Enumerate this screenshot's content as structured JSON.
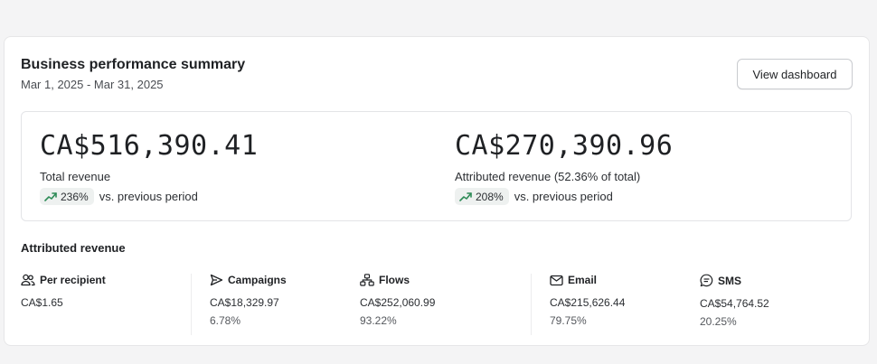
{
  "summary": {
    "title": "Business performance summary",
    "date_range": "Mar 1, 2025 - Mar 31, 2025",
    "view_button": "View dashboard"
  },
  "kpis": [
    {
      "value": "CA$516,390.41",
      "label": "Total revenue",
      "change": "236%",
      "change_suffix": "vs. previous period",
      "trend_icon": "trending-up-icon"
    },
    {
      "value": "CA$270,390.96",
      "label": "Attributed revenue (52.36% of total)",
      "change": "208%",
      "change_suffix": "vs. previous period",
      "trend_icon": "trending-up-icon"
    }
  ],
  "attributed": {
    "title": "Attributed revenue",
    "metrics": [
      {
        "icon": "users-icon",
        "label": "Per recipient",
        "value": "CA$1.65",
        "percent": ""
      },
      {
        "icon": "send-icon",
        "label": "Campaigns",
        "value": "CA$18,329.97",
        "percent": "6.78%"
      },
      {
        "icon": "flows-icon",
        "label": "Flows",
        "value": "CA$252,060.99",
        "percent": "93.22%"
      },
      {
        "icon": "mail-icon",
        "label": "Email",
        "value": "CA$215,626.44",
        "percent": "79.75%"
      },
      {
        "icon": "sms-icon",
        "label": "SMS",
        "value": "CA$54,764.52",
        "percent": "20.25%"
      }
    ]
  },
  "colors": {
    "trend_up": "#2e8b57",
    "pill_bg": "#eef1f0"
  }
}
